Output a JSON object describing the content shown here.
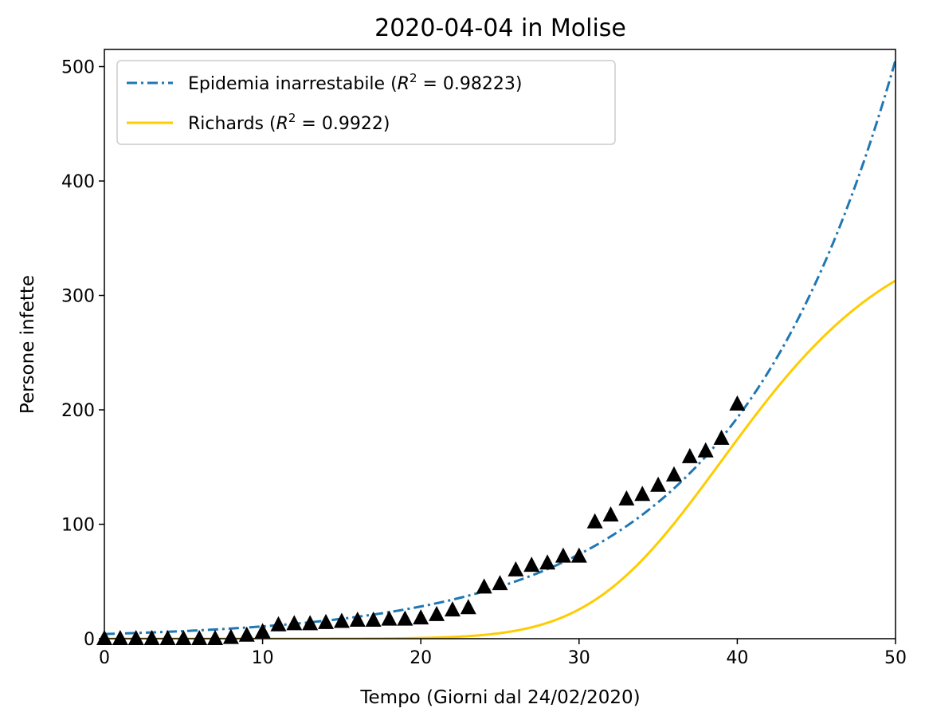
{
  "chart_data": {
    "type": "line",
    "title": "2020-04-04 in Molise",
    "xlabel": "Tempo (Giorni dal 24/02/2020)",
    "ylabel": "Persone infette",
    "xlim": [
      0,
      50
    ],
    "ylim": [
      0,
      515
    ],
    "xticks": [
      0,
      10,
      20,
      30,
      40,
      50
    ],
    "yticks": [
      0,
      100,
      200,
      300,
      400,
      500
    ],
    "grid": false,
    "legend_position": "upper left",
    "series": [
      {
        "name": "Epidemia inarrestabile",
        "r2_label": "0.98223",
        "kind": "line",
        "style": "dashdot",
        "color": "#1f77b4",
        "model": "exponential",
        "params": {
          "a": 4.1,
          "b": 0.0963
        }
      },
      {
        "name": "Richards",
        "r2_label": "0.9922",
        "kind": "line",
        "style": "solid",
        "color": "#ffcc00",
        "model": "richards",
        "params": {
          "K": 370,
          "r": 0.16,
          "t0": 39,
          "d": 0.32
        }
      },
      {
        "kind": "scatter",
        "marker": "triangle",
        "color": "#000000",
        "x": [
          0,
          1,
          2,
          3,
          4,
          5,
          6,
          7,
          8,
          9,
          10,
          11,
          12,
          13,
          14,
          15,
          16,
          17,
          18,
          19,
          20,
          21,
          22,
          23,
          24,
          25,
          26,
          27,
          28,
          29,
          30,
          31,
          32,
          33,
          34,
          35,
          36,
          37,
          38,
          39,
          40
        ],
        "y": [
          0,
          0,
          0,
          0,
          0,
          0,
          0,
          0,
          1,
          3,
          6,
          12,
          13,
          13,
          14,
          15,
          16,
          16,
          17,
          17,
          18,
          21,
          25,
          27,
          45,
          48,
          60,
          64,
          66,
          72,
          72,
          102,
          108,
          122,
          126,
          134,
          143,
          159,
          164,
          175,
          205
        ]
      }
    ]
  }
}
